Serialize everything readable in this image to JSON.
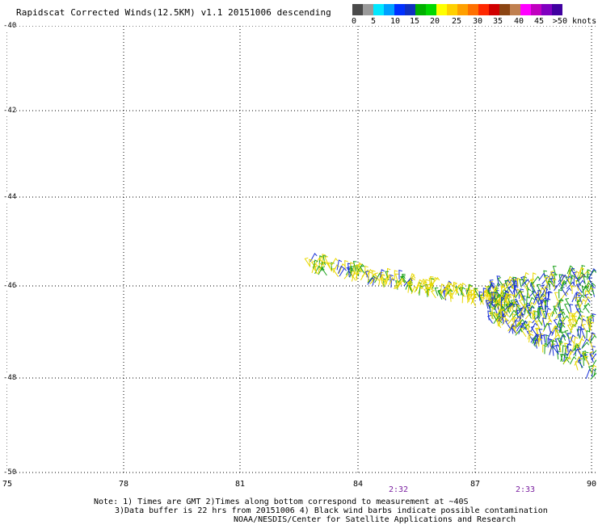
{
  "title": "Rapidscat Corrected Winds(12.5KM) v1.1 20151006 descending",
  "legend": {
    "colors": [
      "#4a4a4a",
      "#9a9a9a",
      "#00e8ff",
      "#00a0ff",
      "#0030ff",
      "#1030c0",
      "#00b000",
      "#00d800",
      "#ffff00",
      "#ffd000",
      "#ffa000",
      "#ff7000",
      "#ff2800",
      "#d00000",
      "#8b4513",
      "#c08050",
      "#ff00ff",
      "#c000c0",
      "#8000c0",
      "#4000a0"
    ],
    "labels": [
      "0",
      "5",
      "10",
      "15",
      "20",
      "25",
      "30",
      "35",
      "40",
      "45",
      ">50 knots"
    ]
  },
  "axes": {
    "lat_ticks": [
      "-40",
      "-42",
      "-44",
      "-46",
      "-48",
      "-50"
    ],
    "lon_ticks": [
      "75",
      "78",
      "81",
      "84",
      "87",
      "90"
    ]
  },
  "times": [
    "2:32",
    "2:33"
  ],
  "notes": {
    "line1": "Note: 1) Times are GMT 2)Times along bottom correspond to measurement at ~40S",
    "line2": "3)Data buffer is 22 hrs from 20151006 4) Black wind barbs indicate possible contamination",
    "line3": "NOAA/NESDIS/Center for Satellite Applications and Research"
  },
  "barb_colors": {
    "yellow": "#e8d800",
    "green": "#18a018",
    "blue": "#1830d8"
  }
}
